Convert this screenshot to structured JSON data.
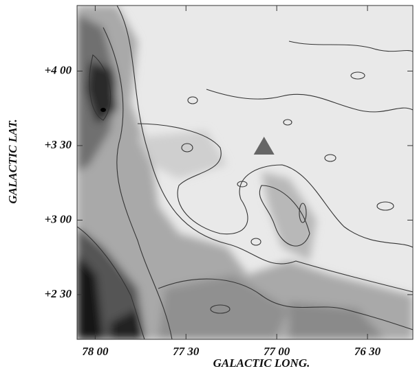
{
  "chart_data": {
    "type": "map",
    "x_label": "GALACTIC LONG.",
    "y_label": "GALACTIC LAT.",
    "xlim": [
      78.1,
      76.25
    ],
    "ylim": [
      2.2,
      4.44
    ],
    "xticks": [
      {
        "value": 78.0,
        "label": "78 00"
      },
      {
        "value": 77.5,
        "label": "77 30"
      },
      {
        "value": 77.0,
        "label": "77 00"
      },
      {
        "value": 76.5,
        "label": "76 30"
      }
    ],
    "yticks": [
      {
        "value": 4.0,
        "label": "+4 00"
      },
      {
        "value": 3.5,
        "label": "+3 30"
      },
      {
        "value": 3.0,
        "label": "+3 00"
      },
      {
        "value": 2.5,
        "label": "+2 30"
      }
    ],
    "markers": [
      {
        "x": 77.07,
        "y": 3.495,
        "color": "#666666",
        "shape": "triangle"
      }
    ]
  }
}
